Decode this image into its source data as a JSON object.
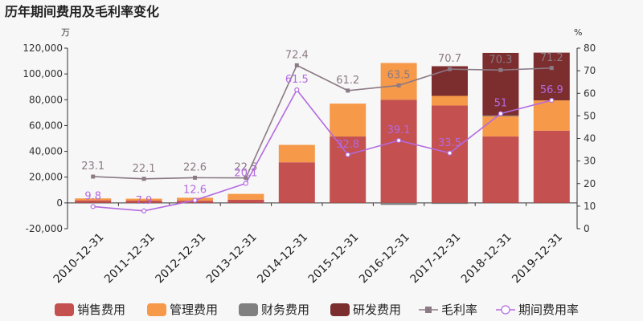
{
  "chart_data": {
    "type": "bar",
    "title": "历年期间费用及毛利率变化",
    "left_unit": "万",
    "right_unit": "%",
    "categories": [
      "2010-12-31",
      "2011-12-31",
      "2012-12-31",
      "2013-12-31",
      "2014-12-31",
      "2015-12-31",
      "2016-12-31",
      "2017-12-31",
      "2018-12-31",
      "2019-12-31"
    ],
    "ylim_left": [
      -20000,
      120000
    ],
    "yticks_left": [
      -20000,
      0,
      20000,
      40000,
      60000,
      80000,
      100000,
      120000
    ],
    "ytick_labels_left": [
      "-20,000",
      "0",
      "20,000",
      "40,000",
      "60,000",
      "80,000",
      "100,000",
      "120,000"
    ],
    "ylim_right": [
      0,
      80
    ],
    "yticks_right": [
      0,
      10,
      20,
      30,
      40,
      50,
      60,
      70,
      80
    ],
    "ytick_labels_right": [
      "0",
      "10",
      "20",
      "30",
      "40",
      "50",
      "60",
      "70",
      "80"
    ],
    "stacked": true,
    "series": [
      {
        "name": "销售费用",
        "kind": "bar",
        "color": "#c4504f",
        "values": [
          2000,
          1800,
          1700,
          2500,
          31500,
          51500,
          80000,
          75500,
          51500,
          56000
        ]
      },
      {
        "name": "管理费用",
        "kind": "bar",
        "color": "#f69948",
        "values": [
          1500,
          1500,
          2300,
          4500,
          13500,
          25500,
          28500,
          7500,
          16000,
          23500
        ]
      },
      {
        "name": "财务费用",
        "kind": "bar",
        "color": "#808080",
        "values": [
          0,
          0,
          0,
          0,
          0,
          0,
          -1500,
          -800,
          300,
          0
        ]
      },
      {
        "name": "研发费用",
        "kind": "bar",
        "color": "#7c2d2d",
        "values": [
          0,
          0,
          0,
          0,
          0,
          0,
          0,
          23000,
          48500,
          37000
        ]
      },
      {
        "name": "毛利率",
        "kind": "line",
        "axis": "right",
        "color": "#8c7a85",
        "marker": "square",
        "values": [
          23.1,
          22.1,
          22.6,
          22.5,
          72.4,
          61.2,
          63.5,
          70.7,
          70.3,
          71.2
        ],
        "labels": [
          "23.1",
          "22.1",
          "22.6",
          "22.5",
          "72.4",
          "61.2",
          "63.5",
          "70.7",
          "70.3",
          "71.2"
        ]
      },
      {
        "name": "期间费用率",
        "kind": "line",
        "axis": "right",
        "color": "#b36ae0",
        "marker": "circle",
        "values": [
          9.8,
          7.9,
          12.6,
          20.1,
          61.5,
          32.8,
          39.1,
          33.5,
          51,
          56.9
        ],
        "labels": [
          "9.8",
          "7.9",
          "12.6",
          "20.1",
          "61.5",
          "32.8",
          "39.1",
          "33.5",
          "51",
          "56.9"
        ]
      }
    ],
    "legend": {
      "position": "bottom"
    },
    "grid": false
  }
}
